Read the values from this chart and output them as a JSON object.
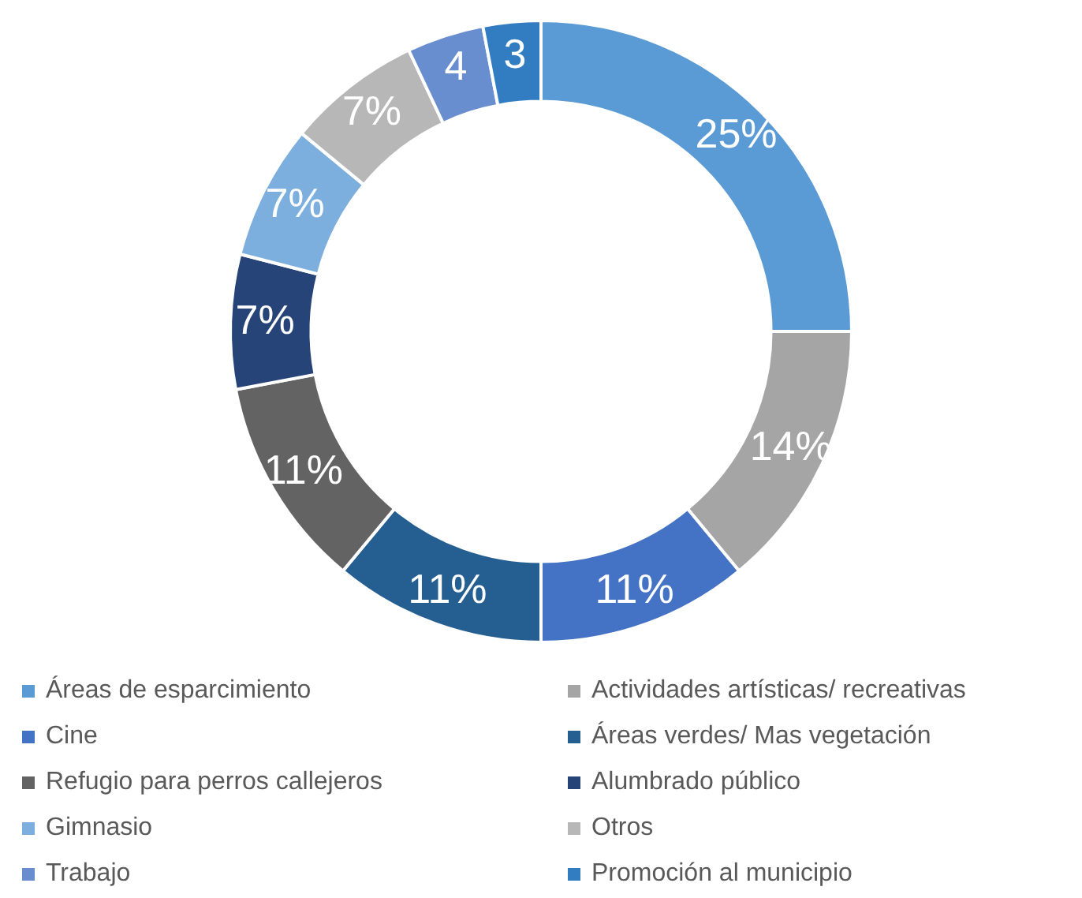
{
  "chart_data": {
    "type": "donut",
    "categories": [
      "Áreas de esparcimiento",
      "Actividades artísticas/ recreativas",
      "Cine",
      "Áreas verdes/ Mas vegetación",
      "Refugio para perros callejeros",
      "Alumbrado público",
      "Gimnasio",
      "Otros",
      "Trabajo",
      "Promoción al municipio"
    ],
    "values": [
      25,
      14,
      11,
      11,
      11,
      7,
      7,
      7,
      4,
      3
    ],
    "value_labels": [
      "25%",
      "14%",
      "11%",
      "11%",
      "11%",
      "7%",
      "7%",
      "7%",
      "4",
      "3"
    ],
    "colors": [
      "#5b9bd5",
      "#a5a5a5",
      "#4472c4",
      "#255e91",
      "#636363",
      "#264478",
      "#7cafdd",
      "#b7b7b7",
      "#698ed0",
      "#327dc2"
    ],
    "legend": "bottom"
  }
}
